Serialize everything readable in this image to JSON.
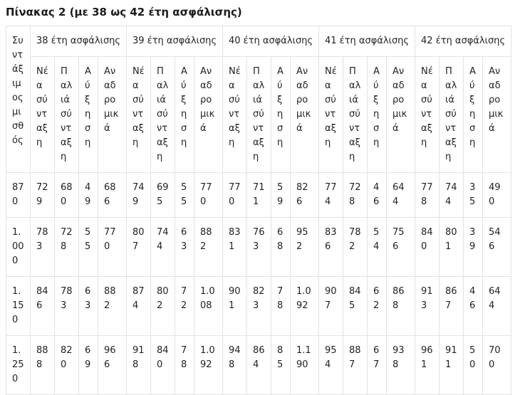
{
  "title": "Πίνακας 2 (με 38 ως 42 έτη ασφάλισης)",
  "table": {
    "corner_header": "Συντάξιμος μισθός",
    "groups": [
      {
        "label": "38 έτη ασφάλισης"
      },
      {
        "label": "39 έτη ασφάλισης"
      },
      {
        "label": "40 έτη ασφάλισης"
      },
      {
        "label": "41 έτη ασφάλισης"
      },
      {
        "label": "42 έτη ασφάλισης"
      }
    ],
    "sub_headers": [
      "Νέα σύνταξη",
      "Παλιά σύνταξη",
      "Αύξηση",
      "Αναδρομικά"
    ],
    "rows": [
      {
        "salary": "870",
        "cells": [
          "729",
          "680",
          "49",
          "686",
          "749",
          "695",
          "55",
          "770",
          "770",
          "711",
          "59",
          "826",
          "774",
          "728",
          "46",
          "644",
          "778",
          "744",
          "35",
          "490"
        ]
      },
      {
        "salary": "1.000",
        "cells": [
          "783",
          "728",
          "55",
          "770",
          "807",
          "744",
          "63",
          "882",
          "831",
          "763",
          "68",
          "952",
          "836",
          "782",
          "54",
          "756",
          "840",
          "801",
          "39",
          "546"
        ]
      },
      {
        "salary": "1.150",
        "cells": [
          "846",
          "783",
          "63",
          "882",
          "874",
          "802",
          "72",
          "1.008",
          "901",
          "823",
          "78",
          "1.092",
          "907",
          "845",
          "62",
          "868",
          "913",
          "867",
          "46",
          "644"
        ]
      },
      {
        "salary": "1.250",
        "cells": [
          "888",
          "820",
          "69",
          "966",
          "918",
          "840",
          "78",
          "1.092",
          "948",
          "864",
          "85",
          "1.190",
          "954",
          "887",
          "67",
          "938",
          "961",
          "911",
          "50",
          "700"
        ]
      }
    ]
  },
  "colors": {
    "text": "#222222",
    "border": "#e2e2e2",
    "background": "#ffffff"
  }
}
